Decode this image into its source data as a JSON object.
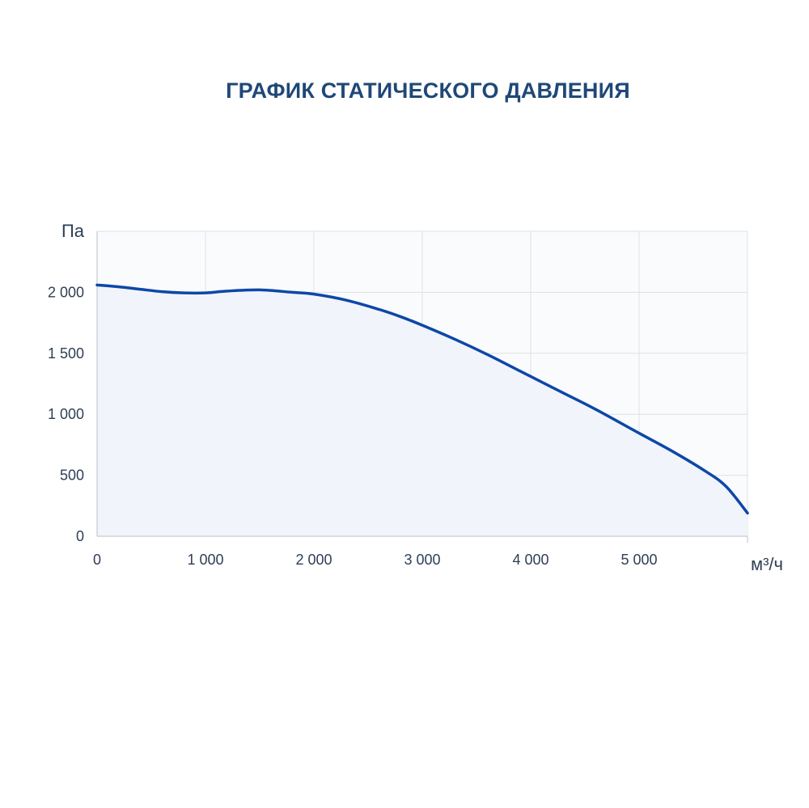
{
  "chart_data": {
    "type": "area",
    "title": "ГРАФИК СТАТИЧЕСКОГО ДАВЛЕНИЯ",
    "xlabel": "м³/ч",
    "ylabel": "Па",
    "xlim": [
      0,
      6000
    ],
    "ylim": [
      0,
      2500
    ],
    "grid": true,
    "x_ticks": [
      {
        "value": 0,
        "label": "0"
      },
      {
        "value": 1000,
        "label": "1 000"
      },
      {
        "value": 2000,
        "label": "2 000"
      },
      {
        "value": 3000,
        "label": "3 000"
      },
      {
        "value": 4000,
        "label": "4 000"
      },
      {
        "value": 5000,
        "label": "5 000"
      }
    ],
    "y_ticks": [
      {
        "value": 0,
        "label": "0"
      },
      {
        "value": 500,
        "label": "500"
      },
      {
        "value": 1000,
        "label": "1 000"
      },
      {
        "value": 1500,
        "label": "1 500"
      },
      {
        "value": 2000,
        "label": "2 000"
      }
    ],
    "series": [
      {
        "x": [
          0,
          200,
          400,
          600,
          800,
          1000,
          1200,
          1500,
          1800,
          2000,
          2300,
          2600,
          2800,
          3000,
          3300,
          3600,
          3900,
          4000,
          4300,
          4600,
          5000,
          5300,
          5600,
          5800,
          6000
        ],
        "y": [
          2060,
          2045,
          2025,
          2005,
          1995,
          1995,
          2010,
          2020,
          2000,
          1985,
          1935,
          1860,
          1800,
          1730,
          1615,
          1490,
          1355,
          1310,
          1175,
          1040,
          845,
          700,
          540,
          410,
          190
        ],
        "color": "#0d47a9"
      }
    ]
  },
  "colors": {
    "line": "#0d47a9",
    "area_fill": "#f1f5fb",
    "plot_background": "#fafbfd",
    "grid": "#dde1e7",
    "title": "#1f4877",
    "text": "#2e3f55"
  }
}
